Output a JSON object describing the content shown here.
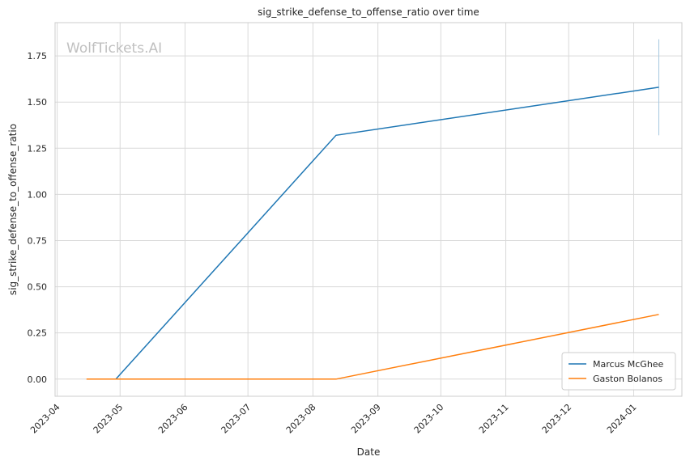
{
  "chart_data": {
    "type": "line",
    "title": "sig_strike_defense_to_offense_ratio over time",
    "xlabel": "Date",
    "ylabel": "sig_strike_defense_to_offense_ratio",
    "watermark": "WolfTickets.AI",
    "xlim": [
      "2023-03-31",
      "2024-01-24"
    ],
    "ylim": [
      -0.093,
      1.93
    ],
    "x_ticks": [
      "2023-04-01",
      "2023-05-01",
      "2023-06-01",
      "2023-07-01",
      "2023-08-01",
      "2023-09-01",
      "2023-10-01",
      "2023-11-01",
      "2023-12-01",
      "2024-01-01"
    ],
    "x_tick_labels": [
      "2023-04",
      "2023-05",
      "2023-06",
      "2023-07",
      "2023-08",
      "2023-09",
      "2023-10",
      "2023-11",
      "2023-12",
      "2024-01"
    ],
    "y_ticks": [
      0.0,
      0.25,
      0.5,
      0.75,
      1.0,
      1.25,
      1.5,
      1.75
    ],
    "y_tick_labels": [
      "0.00",
      "0.25",
      "0.50",
      "0.75",
      "1.00",
      "1.25",
      "1.50",
      "1.75"
    ],
    "grid": true,
    "legend_position": "bottom-right",
    "series": [
      {
        "name": "Marcus McGhee",
        "color": "#1f77b4",
        "x": [
          "2023-04-29",
          "2023-08-12",
          "2024-01-13"
        ],
        "y": [
          0.0,
          1.32,
          1.58
        ]
      },
      {
        "name": "Gaston Bolanos",
        "color": "#ff7f0e",
        "x": [
          "2023-04-15",
          "2023-08-12",
          "2024-01-13"
        ],
        "y": [
          0.0,
          0.0,
          0.35
        ]
      }
    ],
    "error_band": {
      "series": "Marcus McGhee",
      "color": "#a6c8e0",
      "x": "2024-01-13",
      "y_low": 1.32,
      "y_high": 1.84
    }
  }
}
